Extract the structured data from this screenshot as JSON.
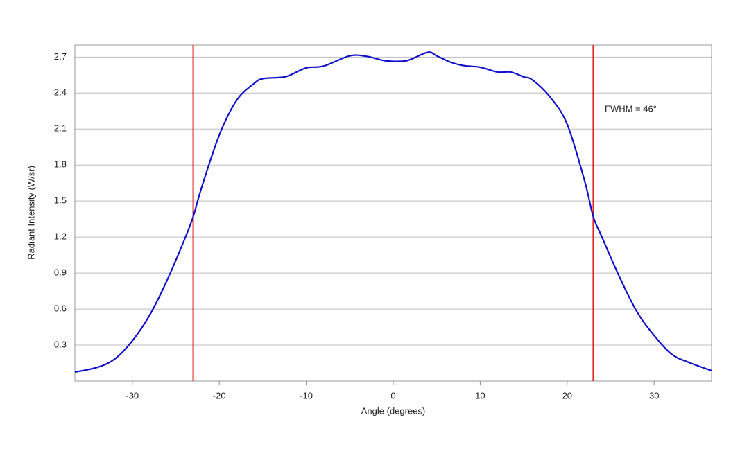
{
  "chart_data": {
    "type": "line",
    "x_label": "Angle (degrees)",
    "y_label": "Radiant Intensity (W/sr)",
    "annotation": "FWHM = 46°",
    "xlim": [
      -36.6,
      36.6
    ],
    "ylim": [
      0,
      2.8
    ],
    "xticks": [
      -30,
      -20,
      -10,
      0,
      10,
      20,
      30
    ],
    "yticks": [
      0.3,
      0.6,
      0.9,
      1.2,
      1.5,
      1.8,
      2.1,
      2.4,
      2.7
    ],
    "grid": true,
    "reference_lines": [
      {
        "x": -23,
        "color": "#dd2222"
      },
      {
        "x": 23,
        "color": "#dd2222"
      }
    ],
    "series": [
      {
        "color": "#1010cc",
        "x": [
          -36.6,
          -34,
          -32,
          -30,
          -28,
          -26,
          -24,
          -23,
          -22,
          -20,
          -18,
          -16,
          -15,
          -13,
          -12,
          -10,
          -8,
          -5,
          -3,
          -1,
          1,
          2,
          4,
          5,
          6.5,
          8,
          10,
          12,
          13.5,
          15,
          16,
          18,
          20,
          22,
          23,
          24,
          26,
          28,
          30,
          32,
          34,
          36.6
        ],
        "values": [
          0.075,
          0.115,
          0.185,
          0.335,
          0.55,
          0.84,
          1.18,
          1.37,
          1.62,
          2.05,
          2.34,
          2.48,
          2.52,
          2.53,
          2.545,
          2.61,
          2.625,
          2.71,
          2.705,
          2.67,
          2.665,
          2.68,
          2.74,
          2.71,
          2.66,
          2.63,
          2.615,
          2.575,
          2.575,
          2.535,
          2.51,
          2.37,
          2.14,
          1.67,
          1.37,
          1.2,
          0.87,
          0.58,
          0.38,
          0.225,
          0.155,
          0.087
        ]
      }
    ]
  }
}
